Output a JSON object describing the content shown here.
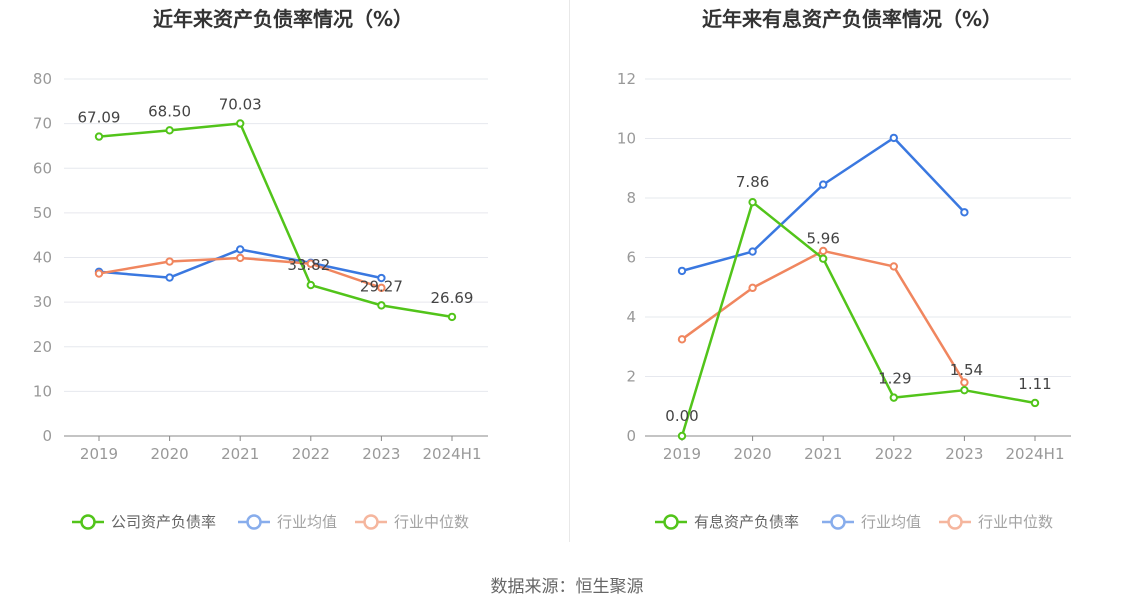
{
  "chart_data": [
    {
      "type": "line",
      "title": "近年来资产负债率情况（%）",
      "categories": [
        "2019",
        "2020",
        "2021",
        "2022",
        "2023",
        "2024H1"
      ],
      "ylim": [
        0,
        80
      ],
      "yticks": [
        0,
        10,
        20,
        30,
        40,
        50,
        60,
        70,
        80
      ],
      "series": [
        {
          "name": "公司资产负债率",
          "color": "#52c41a",
          "values": [
            67.09,
            68.5,
            70.03,
            33.82,
            29.27,
            26.69
          ],
          "labels": [
            "67.09",
            "68.50",
            "70.03",
            "33.82",
            "29.27",
            "26.69"
          ]
        },
        {
          "name": "行业均值",
          "color": "#3a78e0",
          "values": [
            36.8,
            35.5,
            41.8,
            38.8,
            35.4,
            null
          ]
        },
        {
          "name": "行业中位数",
          "color": "#f0865f",
          "values": [
            36.4,
            39.1,
            39.9,
            38.6,
            33.2,
            null
          ]
        }
      ]
    },
    {
      "type": "line",
      "title": "近年来有息资产负债率情况（%）",
      "categories": [
        "2019",
        "2020",
        "2021",
        "2022",
        "2023",
        "2024H1"
      ],
      "ylim": [
        0,
        12
      ],
      "yticks": [
        0,
        2,
        4,
        6,
        8,
        10,
        12
      ],
      "series": [
        {
          "name": "有息资产负债率",
          "color": "#52c41a",
          "values": [
            0.0,
            7.86,
            5.96,
            1.29,
            1.54,
            1.11
          ],
          "labels": [
            "0.00",
            "7.86",
            "5.96",
            "1.29",
            "1.54",
            "1.11"
          ]
        },
        {
          "name": "行业均值",
          "color": "#3a78e0",
          "values": [
            5.55,
            6.2,
            8.45,
            10.02,
            7.52,
            null
          ]
        },
        {
          "name": "行业中位数",
          "color": "#f0865f",
          "values": [
            3.25,
            4.98,
            6.22,
            5.7,
            1.8,
            null
          ]
        }
      ]
    }
  ],
  "source": "数据来源：恒生聚源"
}
